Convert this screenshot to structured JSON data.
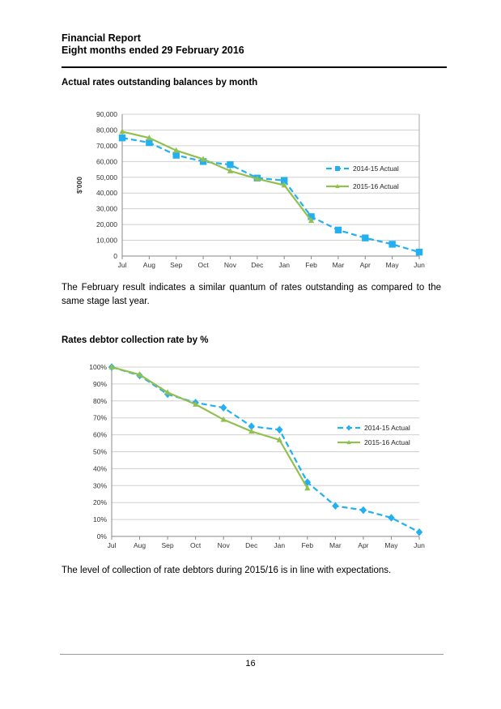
{
  "header": {
    "line1": "Financial Report",
    "line2": "Eight months ended 29 February 2016"
  },
  "section1": {
    "title": "Actual rates outstanding balances by month",
    "paragraph": "The February result indicates a similar quantum of rates outstanding as compared to the same stage last year."
  },
  "section2": {
    "title": "Rates debtor collection rate by %",
    "paragraph": "The level of collection of rate debtors during 2015/16 is in line with expectations."
  },
  "footer": {
    "page_number": "16"
  },
  "colors": {
    "series_2014": "#22b0f0",
    "series_2015": "#92c050",
    "grid": "#d0d0d0"
  },
  "chart_data": [
    {
      "type": "line",
      "title": "Actual rates outstanding balances by month",
      "ylabel": "$'000",
      "xlabel": "",
      "categories": [
        "Jul",
        "Aug",
        "Sep",
        "Oct",
        "Nov",
        "Dec",
        "Jan",
        "Feb",
        "Mar",
        "Apr",
        "May",
        "Jun"
      ],
      "ylim": [
        0,
        90000
      ],
      "yticks": [
        0,
        10000,
        20000,
        30000,
        40000,
        50000,
        60000,
        70000,
        80000,
        90000
      ],
      "ytick_labels": [
        "0",
        "10,000",
        "20,000",
        "30,000",
        "40,000",
        "50,000",
        "60,000",
        "70,000",
        "80,000",
        "90,000"
      ],
      "series": [
        {
          "name": "2014-15 Actual",
          "values": [
            75000,
            72000,
            64000,
            60000,
            58000,
            49500,
            48000,
            25000,
            16500,
            11500,
            7500,
            2500
          ]
        },
        {
          "name": "2015-16 Actual",
          "values": [
            79000,
            75000,
            67000,
            61500,
            54000,
            49000,
            45000,
            22500,
            null,
            null,
            null,
            null
          ]
        }
      ]
    },
    {
      "type": "line",
      "title": "Rates debtor collection rate by %",
      "ylabel": "",
      "xlabel": "",
      "categories": [
        "Jul",
        "Aug",
        "Sep",
        "Oct",
        "Nov",
        "Dec",
        "Jan",
        "Feb",
        "Mar",
        "Apr",
        "May",
        "Jun"
      ],
      "ylim": [
        0,
        100
      ],
      "yticks": [
        0,
        10,
        20,
        30,
        40,
        50,
        60,
        70,
        80,
        90,
        100
      ],
      "ytick_labels": [
        "0%",
        "10%",
        "20%",
        "30%",
        "40%",
        "50%",
        "60%",
        "70%",
        "80%",
        "90%",
        "100%"
      ],
      "series": [
        {
          "name": "2014-15 Actual",
          "values": [
            100,
            95,
            84,
            79,
            76,
            65,
            63,
            32,
            18,
            15.5,
            11,
            2.5
          ]
        },
        {
          "name": "2015-16 Actual",
          "values": [
            100,
            95.5,
            85,
            78,
            69,
            62,
            57,
            28.5,
            null,
            null,
            null,
            null
          ]
        }
      ]
    }
  ]
}
